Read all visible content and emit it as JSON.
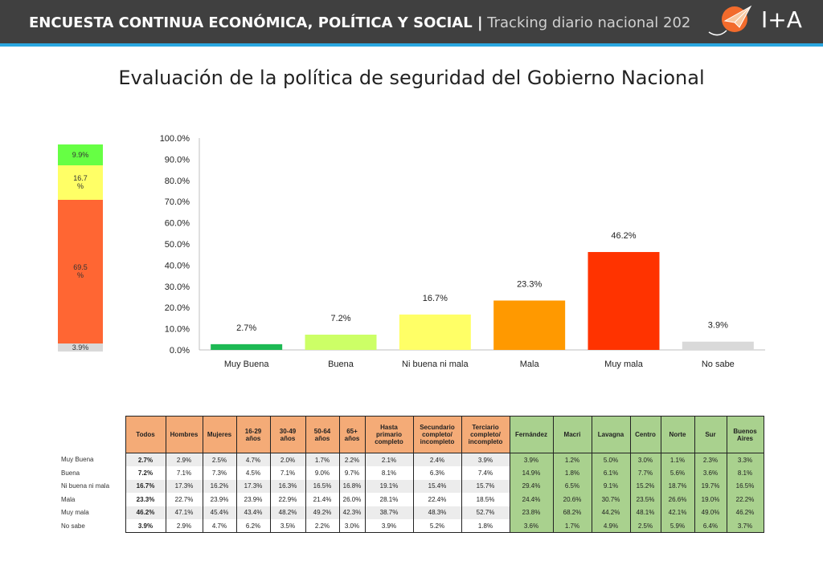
{
  "header": {
    "title_main": "ENCUESTA CONTINUA ECONÓMICA, POLÍTICA Y SOCIAL |",
    "title_sub": "Tracking diario nacional 202",
    "logo_text": "I+A",
    "colors": {
      "bar": "#404040",
      "accent": "#2aa7e0"
    }
  },
  "chart_data": [
    {
      "type": "bar",
      "title": "Evaluación de la política de seguridad del Gobierno Nacional",
      "categories": [
        "Muy Buena",
        "Buena",
        "Ni buena ni mala",
        "Mala",
        "Muy mala",
        "No sabe"
      ],
      "values": [
        2.7,
        7.2,
        16.7,
        23.3,
        46.2,
        3.9
      ],
      "value_labels": [
        "2.7%",
        "7.2%",
        "16.7%",
        "23.3%",
        "46.2%",
        "3.9%"
      ],
      "colors": [
        "#1db954",
        "#ccff66",
        "#ffff66",
        "#ff9900",
        "#ff3300",
        "#d9d9d9"
      ],
      "ylim": [
        0,
        100
      ],
      "yticks": [
        "0.0%",
        "10.0%",
        "20.0%",
        "30.0%",
        "40.0%",
        "50.0%",
        "60.0%",
        "70.0%",
        "80.0%",
        "90.0%",
        "100.0%"
      ],
      "grid": false
    },
    {
      "type": "bar",
      "stacked": true,
      "segments": [
        {
          "value": 9.9,
          "label": "9.9%",
          "color": "#66ff44"
        },
        {
          "value": 16.7,
          "label": "16.7\n%",
          "color": "#ffff66"
        },
        {
          "value": 69.5,
          "label": "69.5\n%",
          "color": "#ff6633"
        },
        {
          "value": 3.9,
          "label": "3.9%",
          "color": "#d9d9d9"
        }
      ]
    },
    {
      "type": "table",
      "columns": [
        "Todos",
        "Hombres",
        "Mujeres",
        "16-29 años",
        "30-49 años",
        "50-64 años",
        "65+ años",
        "Hasta primario completo",
        "Secundario completo/ incompleto",
        "Terciario completo/ incompleto",
        "Fernández",
        "Macri",
        "Lavagna",
        "Centro",
        "Norte",
        "Sur",
        "Buenos Aires"
      ],
      "rows": [
        {
          "label": "Muy Buena",
          "values": [
            "2.7%",
            "2.9%",
            "2.5%",
            "4.7%",
            "2.0%",
            "1.7%",
            "2.2%",
            "2.1%",
            "2.4%",
            "3.9%",
            "3.9%",
            "1.2%",
            "5.0%",
            "3.0%",
            "1.1%",
            "2.3%",
            "3.3%"
          ]
        },
        {
          "label": "Buena",
          "values": [
            "7.2%",
            "7.1%",
            "7.3%",
            "4.5%",
            "7.1%",
            "9.0%",
            "9.7%",
            "8.1%",
            "6.3%",
            "7.4%",
            "14.9%",
            "1.8%",
            "6.1%",
            "7.7%",
            "5.6%",
            "3.6%",
            "8.1%"
          ]
        },
        {
          "label": "Ni buena ni mala",
          "values": [
            "16.7%",
            "17.3%",
            "16.2%",
            "17.3%",
            "16.3%",
            "16.5%",
            "16.8%",
            "19.1%",
            "15.4%",
            "15.7%",
            "29.4%",
            "6.5%",
            "9.1%",
            "15.2%",
            "18.7%",
            "19.7%",
            "16.5%"
          ]
        },
        {
          "label": "Mala",
          "values": [
            "23.3%",
            "22.7%",
            "23.9%",
            "23.9%",
            "22.9%",
            "21.4%",
            "26.0%",
            "28.1%",
            "22.4%",
            "18.5%",
            "24.4%",
            "20.6%",
            "30.7%",
            "23.5%",
            "26.6%",
            "19.0%",
            "22.2%"
          ]
        },
        {
          "label": "Muy mala",
          "values": [
            "46.2%",
            "47.1%",
            "45.4%",
            "43.4%",
            "48.2%",
            "49.2%",
            "42.3%",
            "38.7%",
            "48.3%",
            "52.7%",
            "23.8%",
            "68.2%",
            "44.2%",
            "48.1%",
            "42.1%",
            "49.0%",
            "46.2%"
          ]
        },
        {
          "label": "No sabe",
          "values": [
            "3.9%",
            "2.9%",
            "4.7%",
            "6.2%",
            "3.5%",
            "2.2%",
            "3.0%",
            "3.9%",
            "5.2%",
            "1.8%",
            "3.6%",
            "1.7%",
            "4.9%",
            "2.5%",
            "5.9%",
            "6.4%",
            "3.7%"
          ]
        }
      ],
      "header_color": "#f4ab77",
      "highlight_color": "#a9d18e"
    }
  ]
}
